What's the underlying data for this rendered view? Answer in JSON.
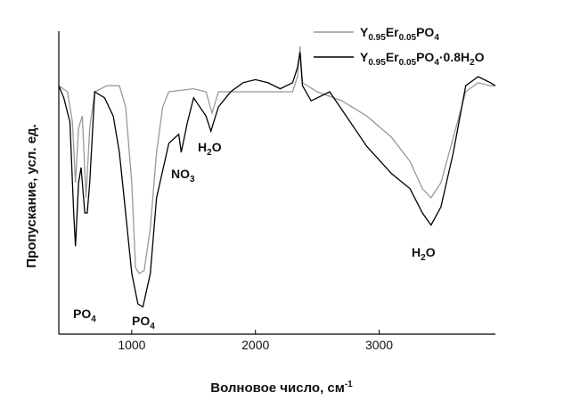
{
  "chart_data": {
    "type": "line",
    "x_label": "Волновое число, см-1",
    "y_label": "Пропускание, усл. ед.",
    "xlim": [
      410,
      3940
    ],
    "ylim": [
      0,
      100
    ],
    "xticks": [
      1000,
      2000,
      3000
    ],
    "legend": "upper right",
    "annotations": [
      "PO4",
      "PO4",
      "NO3",
      "H2O",
      "H2O"
    ],
    "series": [
      {
        "name": "Y0.95Er0.05PO4",
        "color": "#999999",
        "x": [
          410,
          480,
          520,
          545,
          570,
          600,
          630,
          660,
          700,
          800,
          900,
          950,
          1000,
          1030,
          1060,
          1100,
          1150,
          1200,
          1250,
          1300,
          1500,
          1600,
          1650,
          1700,
          1800,
          2000,
          2200,
          2300,
          2340,
          2360,
          2380,
          2500,
          2700,
          2900,
          3100,
          3250,
          3350,
          3420,
          3500,
          3600,
          3700,
          3800,
          3900,
          3940
        ],
        "values": [
          82,
          80,
          70,
          50,
          68,
          72,
          45,
          68,
          80,
          82,
          82,
          75,
          50,
          22,
          20,
          21,
          35,
          60,
          75,
          80,
          81,
          80,
          73,
          80,
          80,
          80,
          80,
          80,
          85,
          95,
          83,
          80,
          77,
          72,
          65,
          57,
          48,
          45,
          50,
          65,
          80,
          83,
          82,
          82
        ]
      },
      {
        "name": "Y0.95Er0.05PO4·0.8H2O",
        "color": "#000000",
        "x": [
          410,
          450,
          500,
          530,
          545,
          570,
          590,
          620,
          640,
          660,
          700,
          780,
          850,
          900,
          950,
          1000,
          1050,
          1090,
          1150,
          1200,
          1300,
          1380,
          1400,
          1450,
          1500,
          1600,
          1640,
          1700,
          1800,
          1900,
          2000,
          2100,
          2200,
          2300,
          2340,
          2360,
          2380,
          2450,
          2600,
          2700,
          2900,
          3100,
          3250,
          3350,
          3420,
          3500,
          3600,
          3700,
          3800,
          3900,
          3940
        ],
        "values": [
          82,
          78,
          70,
          40,
          29,
          50,
          55,
          40,
          40,
          50,
          80,
          78,
          72,
          60,
          40,
          20,
          10,
          9,
          20,
          45,
          63,
          66,
          60,
          70,
          78,
          72,
          67,
          75,
          80,
          83,
          84,
          83,
          81,
          83,
          88,
          93,
          82,
          77,
          80,
          74,
          62,
          53,
          48,
          40,
          36,
          42,
          60,
          82,
          85,
          83,
          82
        ]
      }
    ]
  }
}
